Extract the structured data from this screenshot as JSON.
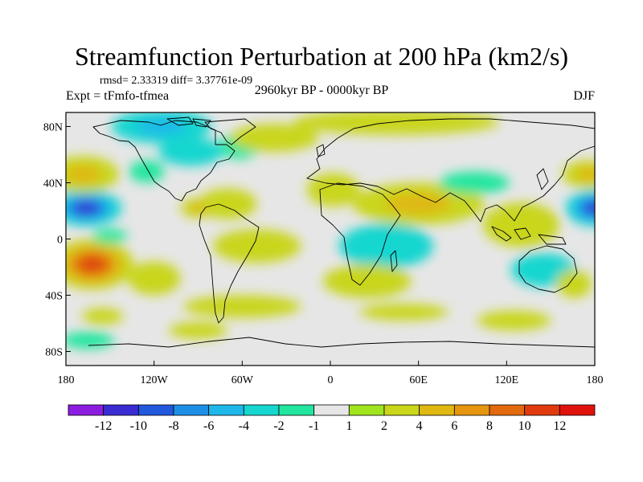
{
  "header": {
    "title": "Streamfunction Perturbation at 200 hPa (km2/s)",
    "stats": "rmsd= 2.33319 diff= 3.37761e-09",
    "experiment": "Expt = tFmfo-tfmea",
    "period": "2960kyr BP - 0000kyr BP",
    "season": "DJF"
  },
  "chart_data": {
    "type": "heatmap",
    "title": "Streamfunction Perturbation at 200 hPa (km2/s)",
    "subtitle": "2960kyr BP - 0000kyr BP",
    "xlabel": "",
    "ylabel": "",
    "xlim": [
      -180,
      180
    ],
    "ylim": [
      -90,
      90
    ],
    "x_ticks": [
      {
        "value": -180,
        "label": "180"
      },
      {
        "value": -120,
        "label": "120W"
      },
      {
        "value": -60,
        "label": "60W"
      },
      {
        "value": 0,
        "label": "0"
      },
      {
        "value": 60,
        "label": "60E"
      },
      {
        "value": 120,
        "label": "120E"
      },
      {
        "value": 180,
        "label": "180"
      }
    ],
    "y_ticks": [
      {
        "value": 80,
        "label": "80N"
      },
      {
        "value": 40,
        "label": "40N"
      },
      {
        "value": 0,
        "label": "0"
      },
      {
        "value": -40,
        "label": "40S"
      },
      {
        "value": -80,
        "label": "80S"
      }
    ],
    "colorbar": {
      "colors": [
        "#8c1de0",
        "#3a2cd2",
        "#2158dc",
        "#1e8fe6",
        "#1db8e9",
        "#16d6d0",
        "#22e69f",
        "#e6e6e6",
        "#a0e41e",
        "#c9d61a",
        "#dfb812",
        "#e6960e",
        "#e2690e",
        "#e03a0e",
        "#e0120c"
      ],
      "labels": [
        "-12",
        "-10",
        "-8",
        "-6",
        "-4",
        "-2",
        "-1",
        "1",
        "2",
        "4",
        "6",
        "8",
        "10",
        "12"
      ]
    },
    "anomalies": [
      {
        "lon": -166,
        "lat": 22,
        "value": -12,
        "rlon": 24,
        "rlat": 13
      },
      {
        "lon": 180,
        "lat": 22,
        "value": -11,
        "rlon": 20,
        "rlat": 13
      },
      {
        "lon": -162,
        "lat": -18,
        "value": 11,
        "rlon": 28,
        "rlat": 18
      },
      {
        "lon": -168,
        "lat": 46,
        "value": 5,
        "rlon": 24,
        "rlat": 13
      },
      {
        "lon": 176,
        "lat": 46,
        "value": 4,
        "rlon": 18,
        "rlat": 10
      },
      {
        "lon": -115,
        "lat": 80,
        "value": -5,
        "rlon": 34,
        "rlat": 12
      },
      {
        "lon": -95,
        "lat": 62,
        "value": -3,
        "rlon": 22,
        "rlat": 10
      },
      {
        "lon": -125,
        "lat": 48,
        "value": -2,
        "rlon": 12,
        "rlat": 8
      },
      {
        "lon": -62,
        "lat": 66,
        "value": -2,
        "rlon": 14,
        "rlat": 9
      },
      {
        "lon": -70,
        "lat": 25,
        "value": 3,
        "rlon": 20,
        "rlat": 11
      },
      {
        "lon": -90,
        "lat": 22,
        "value": 4,
        "rlon": 12,
        "rlat": 7
      },
      {
        "lon": -38,
        "lat": 72,
        "value": 2,
        "rlon": 30,
        "rlat": 10
      },
      {
        "lon": 45,
        "lat": 83,
        "value": 2,
        "rlon": 70,
        "rlat": 9
      },
      {
        "lon": 60,
        "lat": 25,
        "value": 5,
        "rlon": 45,
        "rlat": 15
      },
      {
        "lon": 2,
        "lat": 35,
        "value": 2,
        "rlon": 18,
        "rlat": 12
      },
      {
        "lon": 38,
        "lat": -5,
        "value": -3,
        "rlon": 32,
        "rlat": 16
      },
      {
        "lon": 25,
        "lat": -30,
        "value": 3,
        "rlon": 30,
        "rlat": 12
      },
      {
        "lon": 98,
        "lat": 40,
        "value": -2,
        "rlon": 24,
        "rlat": 8
      },
      {
        "lon": 130,
        "lat": 10,
        "value": 2,
        "rlon": 26,
        "rlat": 16
      },
      {
        "lon": 145,
        "lat": -22,
        "value": -3,
        "rlon": 22,
        "rlat": 12
      },
      {
        "lon": 125,
        "lat": -58,
        "value": 2,
        "rlon": 25,
        "rlat": 7
      },
      {
        "lon": 50,
        "lat": -52,
        "value": 2,
        "rlon": 30,
        "rlat": 6
      },
      {
        "lon": -60,
        "lat": -48,
        "value": 2,
        "rlon": 40,
        "rlat": 8
      },
      {
        "lon": -120,
        "lat": -28,
        "value": 2,
        "rlon": 18,
        "rlat": 12
      },
      {
        "lon": -150,
        "lat": 2,
        "value": -2,
        "rlon": 12,
        "rlat": 5
      },
      {
        "lon": -165,
        "lat": -72,
        "value": -1.5,
        "rlon": 18,
        "rlat": 6
      },
      {
        "lon": -155,
        "lat": -55,
        "value": 2,
        "rlon": 14,
        "rlat": 6
      },
      {
        "lon": -50,
        "lat": -5,
        "value": 2,
        "rlon": 30,
        "rlat": 12
      },
      {
        "lon": -90,
        "lat": -65,
        "value": 2,
        "rlon": 20,
        "rlat": 6
      },
      {
        "lon": 166,
        "lat": -32,
        "value": 2,
        "rlon": 12,
        "rlat": 10
      }
    ]
  }
}
